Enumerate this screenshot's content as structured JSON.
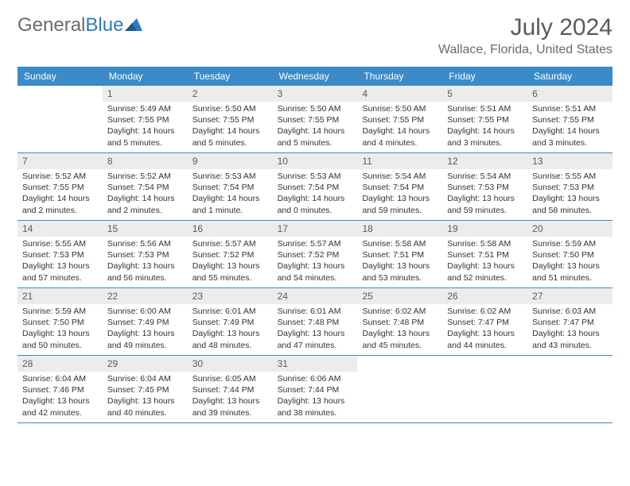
{
  "brand": {
    "part1": "General",
    "part2": "Blue"
  },
  "title": "July 2024",
  "location": "Wallace, Florida, United States",
  "colors": {
    "header_bg": "#3b8bc9",
    "daynum_bg": "#ececec",
    "text": "#333333",
    "muted": "#5a5a5a"
  },
  "dow": [
    "Sunday",
    "Monday",
    "Tuesday",
    "Wednesday",
    "Thursday",
    "Friday",
    "Saturday"
  ],
  "weeks": [
    [
      {
        "n": "",
        "sr": "",
        "ss": "",
        "dl": ""
      },
      {
        "n": "1",
        "sr": "Sunrise: 5:49 AM",
        "ss": "Sunset: 7:55 PM",
        "dl": "Daylight: 14 hours and 5 minutes."
      },
      {
        "n": "2",
        "sr": "Sunrise: 5:50 AM",
        "ss": "Sunset: 7:55 PM",
        "dl": "Daylight: 14 hours and 5 minutes."
      },
      {
        "n": "3",
        "sr": "Sunrise: 5:50 AM",
        "ss": "Sunset: 7:55 PM",
        "dl": "Daylight: 14 hours and 5 minutes."
      },
      {
        "n": "4",
        "sr": "Sunrise: 5:50 AM",
        "ss": "Sunset: 7:55 PM",
        "dl": "Daylight: 14 hours and 4 minutes."
      },
      {
        "n": "5",
        "sr": "Sunrise: 5:51 AM",
        "ss": "Sunset: 7:55 PM",
        "dl": "Daylight: 14 hours and 3 minutes."
      },
      {
        "n": "6",
        "sr": "Sunrise: 5:51 AM",
        "ss": "Sunset: 7:55 PM",
        "dl": "Daylight: 14 hours and 3 minutes."
      }
    ],
    [
      {
        "n": "7",
        "sr": "Sunrise: 5:52 AM",
        "ss": "Sunset: 7:55 PM",
        "dl": "Daylight: 14 hours and 2 minutes."
      },
      {
        "n": "8",
        "sr": "Sunrise: 5:52 AM",
        "ss": "Sunset: 7:54 PM",
        "dl": "Daylight: 14 hours and 2 minutes."
      },
      {
        "n": "9",
        "sr": "Sunrise: 5:53 AM",
        "ss": "Sunset: 7:54 PM",
        "dl": "Daylight: 14 hours and 1 minute."
      },
      {
        "n": "10",
        "sr": "Sunrise: 5:53 AM",
        "ss": "Sunset: 7:54 PM",
        "dl": "Daylight: 14 hours and 0 minutes."
      },
      {
        "n": "11",
        "sr": "Sunrise: 5:54 AM",
        "ss": "Sunset: 7:54 PM",
        "dl": "Daylight: 13 hours and 59 minutes."
      },
      {
        "n": "12",
        "sr": "Sunrise: 5:54 AM",
        "ss": "Sunset: 7:53 PM",
        "dl": "Daylight: 13 hours and 59 minutes."
      },
      {
        "n": "13",
        "sr": "Sunrise: 5:55 AM",
        "ss": "Sunset: 7:53 PM",
        "dl": "Daylight: 13 hours and 58 minutes."
      }
    ],
    [
      {
        "n": "14",
        "sr": "Sunrise: 5:55 AM",
        "ss": "Sunset: 7:53 PM",
        "dl": "Daylight: 13 hours and 57 minutes."
      },
      {
        "n": "15",
        "sr": "Sunrise: 5:56 AM",
        "ss": "Sunset: 7:53 PM",
        "dl": "Daylight: 13 hours and 56 minutes."
      },
      {
        "n": "16",
        "sr": "Sunrise: 5:57 AM",
        "ss": "Sunset: 7:52 PM",
        "dl": "Daylight: 13 hours and 55 minutes."
      },
      {
        "n": "17",
        "sr": "Sunrise: 5:57 AM",
        "ss": "Sunset: 7:52 PM",
        "dl": "Daylight: 13 hours and 54 minutes."
      },
      {
        "n": "18",
        "sr": "Sunrise: 5:58 AM",
        "ss": "Sunset: 7:51 PM",
        "dl": "Daylight: 13 hours and 53 minutes."
      },
      {
        "n": "19",
        "sr": "Sunrise: 5:58 AM",
        "ss": "Sunset: 7:51 PM",
        "dl": "Daylight: 13 hours and 52 minutes."
      },
      {
        "n": "20",
        "sr": "Sunrise: 5:59 AM",
        "ss": "Sunset: 7:50 PM",
        "dl": "Daylight: 13 hours and 51 minutes."
      }
    ],
    [
      {
        "n": "21",
        "sr": "Sunrise: 5:59 AM",
        "ss": "Sunset: 7:50 PM",
        "dl": "Daylight: 13 hours and 50 minutes."
      },
      {
        "n": "22",
        "sr": "Sunrise: 6:00 AM",
        "ss": "Sunset: 7:49 PM",
        "dl": "Daylight: 13 hours and 49 minutes."
      },
      {
        "n": "23",
        "sr": "Sunrise: 6:01 AM",
        "ss": "Sunset: 7:49 PM",
        "dl": "Daylight: 13 hours and 48 minutes."
      },
      {
        "n": "24",
        "sr": "Sunrise: 6:01 AM",
        "ss": "Sunset: 7:48 PM",
        "dl": "Daylight: 13 hours and 47 minutes."
      },
      {
        "n": "25",
        "sr": "Sunrise: 6:02 AM",
        "ss": "Sunset: 7:48 PM",
        "dl": "Daylight: 13 hours and 45 minutes."
      },
      {
        "n": "26",
        "sr": "Sunrise: 6:02 AM",
        "ss": "Sunset: 7:47 PM",
        "dl": "Daylight: 13 hours and 44 minutes."
      },
      {
        "n": "27",
        "sr": "Sunrise: 6:03 AM",
        "ss": "Sunset: 7:47 PM",
        "dl": "Daylight: 13 hours and 43 minutes."
      }
    ],
    [
      {
        "n": "28",
        "sr": "Sunrise: 6:04 AM",
        "ss": "Sunset: 7:46 PM",
        "dl": "Daylight: 13 hours and 42 minutes."
      },
      {
        "n": "29",
        "sr": "Sunrise: 6:04 AM",
        "ss": "Sunset: 7:45 PM",
        "dl": "Daylight: 13 hours and 40 minutes."
      },
      {
        "n": "30",
        "sr": "Sunrise: 6:05 AM",
        "ss": "Sunset: 7:44 PM",
        "dl": "Daylight: 13 hours and 39 minutes."
      },
      {
        "n": "31",
        "sr": "Sunrise: 6:06 AM",
        "ss": "Sunset: 7:44 PM",
        "dl": "Daylight: 13 hours and 38 minutes."
      },
      {
        "n": "",
        "sr": "",
        "ss": "",
        "dl": ""
      },
      {
        "n": "",
        "sr": "",
        "ss": "",
        "dl": ""
      },
      {
        "n": "",
        "sr": "",
        "ss": "",
        "dl": ""
      }
    ]
  ]
}
